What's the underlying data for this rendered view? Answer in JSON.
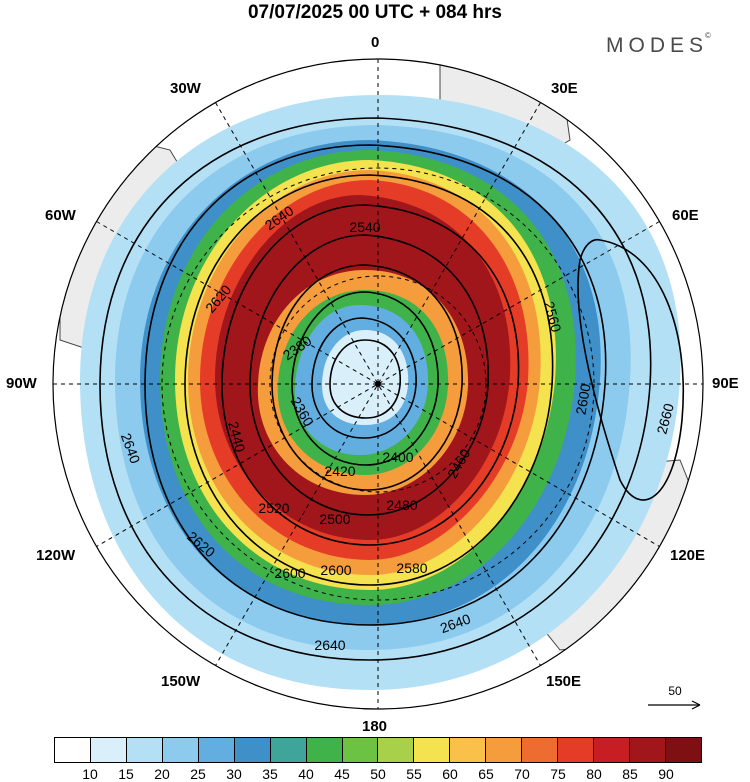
{
  "title": "07/07/2025  00 UTC  + 084 hrs",
  "brand": "MODES",
  "brand_mark": "©",
  "longitude_labels": {
    "n": "0",
    "s": "180",
    "w": "90W",
    "e": "90E",
    "nw1": "30W",
    "ne1": "30E",
    "nw2": "60W",
    "ne2": "60E",
    "sw1": "120W",
    "se1": "120E",
    "sw2": "150W",
    "se2": "150E"
  },
  "reference_vector": "50",
  "contour_labels": [
    "2640",
    "2620",
    "2600",
    "2580",
    "2560",
    "2540",
    "2520",
    "2500",
    "2480",
    "2460",
    "2440",
    "2420",
    "2400",
    "2380",
    "2360",
    "2660"
  ],
  "colorbar": {
    "labels": [
      "10",
      "15",
      "20",
      "25",
      "30",
      "35",
      "40",
      "45",
      "50",
      "55",
      "60",
      "65",
      "70",
      "75",
      "80",
      "85",
      "90"
    ],
    "colors": [
      "#ffffff",
      "#d9f0fb",
      "#b4e0f5",
      "#8ccaee",
      "#63aee0",
      "#3f8fc9",
      "#3fa49a",
      "#3fb34a",
      "#6cc242",
      "#a8d04a",
      "#f4e24e",
      "#f9c14a",
      "#f59c3c",
      "#ee6c30",
      "#e53c28",
      "#c61e22",
      "#a1161b",
      "#7e1014"
    ]
  },
  "colors": {
    "land": "#ececec",
    "coast": "#333333"
  }
}
